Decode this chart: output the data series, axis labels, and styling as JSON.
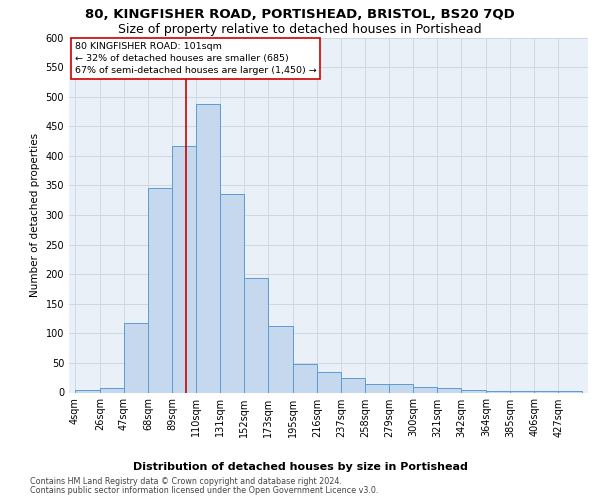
{
  "title1": "80, KINGFISHER ROAD, PORTISHEAD, BRISTOL, BS20 7QD",
  "title2": "Size of property relative to detached houses in Portishead",
  "xlabel": "Distribution of detached houses by size in Portishead",
  "ylabel": "Number of detached properties",
  "footnote1": "Contains HM Land Registry data © Crown copyright and database right 2024.",
  "footnote2": "Contains public sector information licensed under the Open Government Licence v3.0.",
  "annotation_title": "80 KINGFISHER ROAD: 101sqm",
  "annotation_line2": "← 32% of detached houses are smaller (685)",
  "annotation_line3": "67% of semi-detached houses are larger (1,450) →",
  "property_size": 101,
  "bar_labels": [
    "4sqm",
    "26sqm",
    "47sqm",
    "68sqm",
    "89sqm",
    "110sqm",
    "131sqm",
    "152sqm",
    "173sqm",
    "195sqm",
    "216sqm",
    "237sqm",
    "258sqm",
    "279sqm",
    "300sqm",
    "321sqm",
    "342sqm",
    "364sqm",
    "385sqm",
    "406sqm",
    "427sqm"
  ],
  "bar_heights": [
    5,
    7,
    118,
    345,
    417,
    487,
    336,
    193,
    112,
    49,
    34,
    25,
    15,
    14,
    10,
    7,
    4,
    2,
    2,
    2,
    2
  ],
  "bar_edges": [
    4,
    26,
    47,
    68,
    89,
    110,
    131,
    152,
    173,
    195,
    216,
    237,
    258,
    279,
    300,
    321,
    342,
    364,
    385,
    406,
    427,
    448
  ],
  "bar_color": "#c5d8ed",
  "bar_edge_color": "#5b9bd5",
  "grid_color": "#d0d8e4",
  "bg_color": "#eaf0f8",
  "vline_x": 101,
  "vline_color": "#cc0000",
  "ylim": [
    0,
    600
  ],
  "yticks": [
    0,
    50,
    100,
    150,
    200,
    250,
    300,
    350,
    400,
    450,
    500,
    550,
    600
  ],
  "annotation_box_color": "#cc0000",
  "title_fontsize": 9.5,
  "subtitle_fontsize": 9,
  "ylabel_fontsize": 7.5,
  "tick_fontsize": 7,
  "xlabel_fontsize": 8,
  "footnote_fontsize": 5.8
}
